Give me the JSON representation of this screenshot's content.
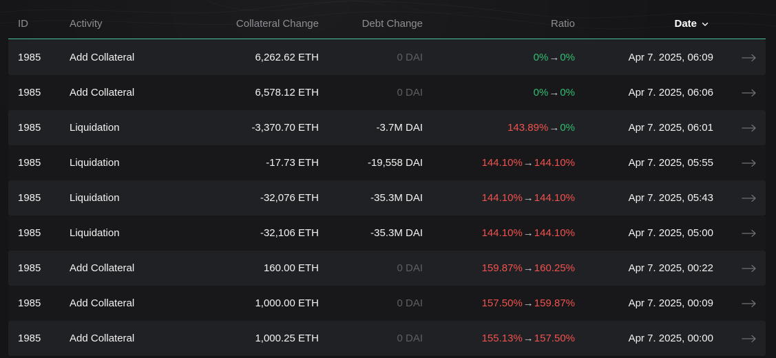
{
  "header": {
    "id": "ID",
    "activity": "Activity",
    "collateral_change": "Collateral Change",
    "debt_change": "Debt Change",
    "ratio": "Ratio",
    "date": "Date"
  },
  "colors": {
    "accent_line": "#4cc9a7",
    "ratio_green": "#2fbf71",
    "ratio_red": "#f2524f",
    "muted_text": "#5d5f63"
  },
  "rows": [
    {
      "id": "1985",
      "activity": "Add Collateral",
      "collateral": "6,262.62 ETH",
      "debt": "0 DAI",
      "debt_muted": true,
      "ratio_from": "0%",
      "ratio_from_color": "green",
      "ratio_arrow": "→",
      "ratio_to": "0%",
      "ratio_to_color": "green",
      "date": "Apr 7. 2025, 06:09"
    },
    {
      "id": "1985",
      "activity": "Add Collateral",
      "collateral": "6,578.12 ETH",
      "debt": "0 DAI",
      "debt_muted": true,
      "ratio_from": "0%",
      "ratio_from_color": "green",
      "ratio_arrow": "→",
      "ratio_to": "0%",
      "ratio_to_color": "green",
      "date": "Apr 7. 2025, 06:06"
    },
    {
      "id": "1985",
      "activity": "Liquidation",
      "collateral": "-3,370.70 ETH",
      "debt": "-3.7M DAI",
      "debt_muted": false,
      "ratio_from": "143.89%",
      "ratio_from_color": "red",
      "ratio_arrow": "→",
      "ratio_to": "0%",
      "ratio_to_color": "green",
      "date": "Apr 7. 2025, 06:01"
    },
    {
      "id": "1985",
      "activity": "Liquidation",
      "collateral": "-17.73 ETH",
      "debt": "-19,558 DAI",
      "debt_muted": false,
      "ratio_from": "144.10%",
      "ratio_from_color": "red",
      "ratio_arrow": "→",
      "ratio_to": "144.10%",
      "ratio_to_color": "red",
      "date": "Apr 7. 2025, 05:55"
    },
    {
      "id": "1985",
      "activity": "Liquidation",
      "collateral": "-32,076 ETH",
      "debt": "-35.3M DAI",
      "debt_muted": false,
      "ratio_from": "144.10%",
      "ratio_from_color": "red",
      "ratio_arrow": "→",
      "ratio_to": "144.10%",
      "ratio_to_color": "red",
      "date": "Apr 7. 2025, 05:43"
    },
    {
      "id": "1985",
      "activity": "Liquidation",
      "collateral": "-32,106 ETH",
      "debt": "-35.3M DAI",
      "debt_muted": false,
      "ratio_from": "144.10%",
      "ratio_from_color": "red",
      "ratio_arrow": "→",
      "ratio_to": "144.10%",
      "ratio_to_color": "red",
      "date": "Apr 7. 2025, 05:00"
    },
    {
      "id": "1985",
      "activity": "Add Collateral",
      "collateral": "160.00 ETH",
      "debt": "0 DAI",
      "debt_muted": true,
      "ratio_from": "159.87%",
      "ratio_from_color": "red",
      "ratio_arrow": "→",
      "ratio_to": "160.25%",
      "ratio_to_color": "red",
      "date": "Apr 7. 2025, 00:22"
    },
    {
      "id": "1985",
      "activity": "Add Collateral",
      "collateral": "1,000.00 ETH",
      "debt": "0 DAI",
      "debt_muted": true,
      "ratio_from": "157.50%",
      "ratio_from_color": "red",
      "ratio_arrow": "→",
      "ratio_to": "159.87%",
      "ratio_to_color": "red",
      "date": "Apr 7. 2025, 00:09"
    },
    {
      "id": "1985",
      "activity": "Add Collateral",
      "collateral": "1,000.25 ETH",
      "debt": "0 DAI",
      "debt_muted": true,
      "ratio_from": "155.13%",
      "ratio_from_color": "red",
      "ratio_arrow": "→",
      "ratio_to": "157.50%",
      "ratio_to_color": "red",
      "date": "Apr 7. 2025, 00:00"
    }
  ]
}
